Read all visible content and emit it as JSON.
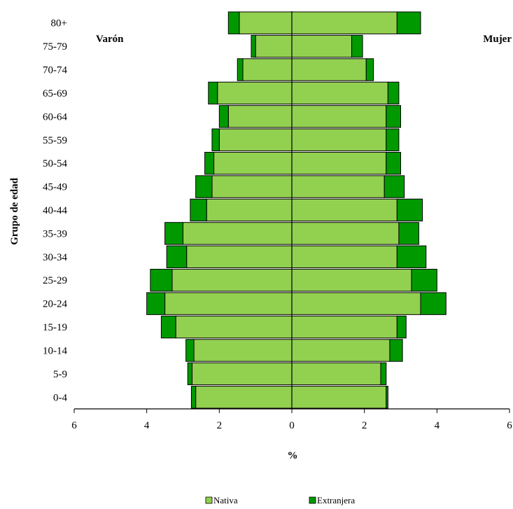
{
  "chart_data": {
    "type": "bar",
    "orientation": "horizontal",
    "layout": "population-pyramid",
    "categories": [
      "0-4",
      "5-9",
      "10-14",
      "15-19",
      "20-24",
      "25-29",
      "30-34",
      "35-39",
      "40-44",
      "45-49",
      "50-54",
      "55-59",
      "60-64",
      "65-69",
      "70-74",
      "75-79",
      "80+"
    ],
    "series": [
      {
        "name": "Nativa",
        "color": "#92d050",
        "varon": [
          2.65,
          2.75,
          2.7,
          3.2,
          3.5,
          3.3,
          2.9,
          3.0,
          2.35,
          2.2,
          2.15,
          2.0,
          1.75,
          2.05,
          1.35,
          1.0,
          1.45
        ],
        "mujer": [
          2.6,
          2.45,
          2.7,
          2.9,
          3.55,
          3.3,
          2.9,
          2.95,
          2.9,
          2.55,
          2.6,
          2.6,
          2.6,
          2.65,
          2.05,
          1.65,
          2.9
        ]
      },
      {
        "name": "Extranjera",
        "color": "#009900",
        "varon": [
          0.12,
          0.12,
          0.22,
          0.4,
          0.5,
          0.6,
          0.55,
          0.5,
          0.45,
          0.45,
          0.25,
          0.2,
          0.25,
          0.25,
          0.15,
          0.12,
          0.3
        ],
        "mujer": [
          0.05,
          0.15,
          0.35,
          0.25,
          0.7,
          0.7,
          0.8,
          0.55,
          0.7,
          0.55,
          0.4,
          0.35,
          0.4,
          0.3,
          0.2,
          0.3,
          0.65
        ]
      }
    ],
    "left_label": "Varón",
    "right_label": "Mujer",
    "xlabel": "%",
    "ylabel": "Grupo de edad",
    "xlim": [
      -6,
      6
    ],
    "xticks": [
      -6,
      -4,
      -2,
      0,
      2,
      4,
      6
    ],
    "xtick_labels": [
      "6",
      "4",
      "2",
      "0",
      "2",
      "4",
      "6"
    ],
    "grid": false,
    "legend_position": "bottom"
  }
}
